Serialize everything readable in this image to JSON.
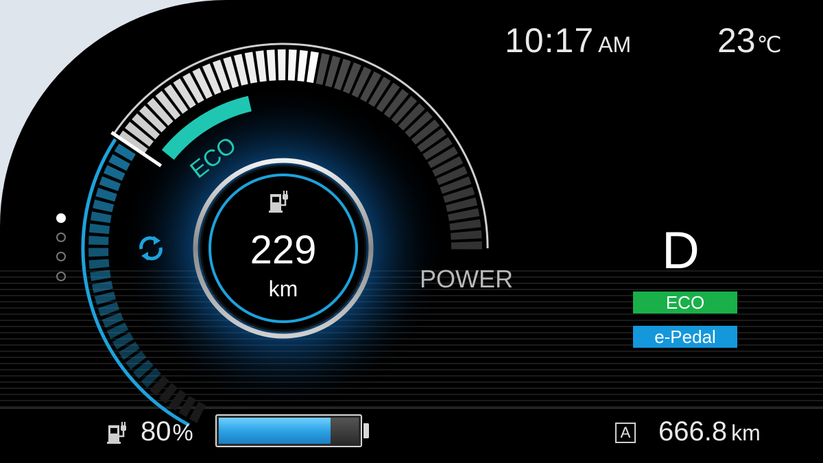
{
  "header": {
    "time": "10:17",
    "time_suffix": "AM",
    "temperature": "23",
    "temperature_unit": "℃"
  },
  "gauge": {
    "eco_label": "ECO",
    "power_label": "POWER",
    "range_value": "229",
    "range_unit": "km",
    "power_level": 0.46,
    "regen_segments_lit": 22
  },
  "drive": {
    "gear": "D",
    "modes": [
      {
        "label": "ECO",
        "color": "#19b04a"
      },
      {
        "label": "e-Pedal",
        "color": "#1597dc"
      }
    ]
  },
  "battery": {
    "percent": "80",
    "percent_sign": "%",
    "level": 0.8
  },
  "odometer": {
    "icon_letter": "A",
    "value": "666.8",
    "unit": "km"
  },
  "page_indicator": {
    "count": 4,
    "active": 0
  },
  "icons": {
    "fuel": "ev-charge-icon",
    "regen": "regen-arrows-icon",
    "trip": "trip-a-icon"
  },
  "colors": {
    "accent_blue": "#1da2dc",
    "eco_teal": "#1fc7b3",
    "eco_badge": "#19b04a",
    "pedal_badge": "#1597dc"
  }
}
